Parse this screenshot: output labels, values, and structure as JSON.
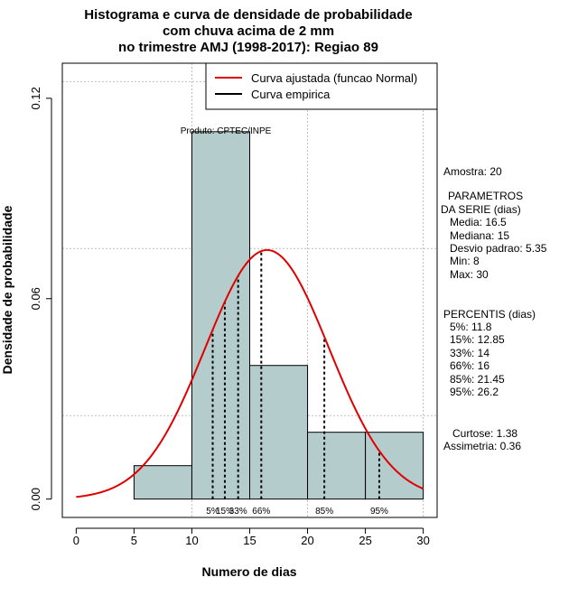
{
  "chart_data": {
    "type": "histogram",
    "title_lines": [
      "Histograma e curva de densidade de probabilidade",
      "com chuva acima de 2 mm",
      "no trimestre AMJ (1998-2017): Regiao 89"
    ],
    "xlabel": "Numero de dias",
    "ylabel": "Densidade de probabilidade",
    "xlim": [
      -1.2,
      31.2
    ],
    "ylim": [
      -0.0055,
      0.1305
    ],
    "x_ticks": [
      0,
      5,
      10,
      15,
      20,
      25,
      30
    ],
    "y_ticks": [
      0.0,
      0.06,
      0.12
    ],
    "y_tick_labels": [
      "0.00",
      "0.06",
      "0.12"
    ],
    "grid_x": [
      10,
      20,
      30
    ],
    "grid_y": [
      0.025,
      0.075,
      0.125
    ],
    "bins": [
      {
        "start": 5,
        "end": 10,
        "density": 0.01
      },
      {
        "start": 10,
        "end": 15,
        "density": 0.11
      },
      {
        "start": 15,
        "end": 20,
        "density": 0.04
      },
      {
        "start": 20,
        "end": 25,
        "density": 0.02
      },
      {
        "start": 25,
        "end": 30,
        "density": 0.02
      }
    ],
    "normal_fit": {
      "mean": 16.5,
      "sd": 5.35,
      "x_from": 0,
      "x_to": 30
    },
    "percentiles": [
      {
        "label": "5%",
        "value": 11.8
      },
      {
        "label": "15%",
        "value": 12.85
      },
      {
        "label": "33%",
        "value": 14
      },
      {
        "label": "66%",
        "value": 16
      },
      {
        "label": "85%",
        "value": 21.45
      },
      {
        "label": "95%",
        "value": 26.2
      }
    ],
    "credit": "Produto: CPTEC/INPE",
    "legend": {
      "position": "top-right",
      "entries": [
        {
          "label": "Curva ajustada (funcao Normal)",
          "color": "#e00000"
        },
        {
          "label": "Curva empirica",
          "color": "#000000"
        }
      ]
    },
    "colors": {
      "bar_fill": "#b4cccc",
      "curve": "#e00000",
      "grid": "#bfbfbf"
    }
  },
  "stats": {
    "amostra": "Amostra: 20",
    "param_title_1": "PARAMETROS",
    "param_title_2": "DA SERIE (dias)",
    "media": "Media: 16.5",
    "mediana": "Mediana: 15",
    "desvio": "Desvio padrao: 5.35",
    "min": "Min: 8",
    "max": "Max: 30",
    "pct_title": "PERCENTIS (dias)",
    "p5": "5%: 11.8",
    "p15": "15%: 12.85",
    "p33": "33%: 14",
    "p66": "66%: 16",
    "p85": "85%: 21.45",
    "p95": "95%: 26.2",
    "curtose": "Curtose: 1.38",
    "assimetria": "Assimetria: 0.36"
  }
}
